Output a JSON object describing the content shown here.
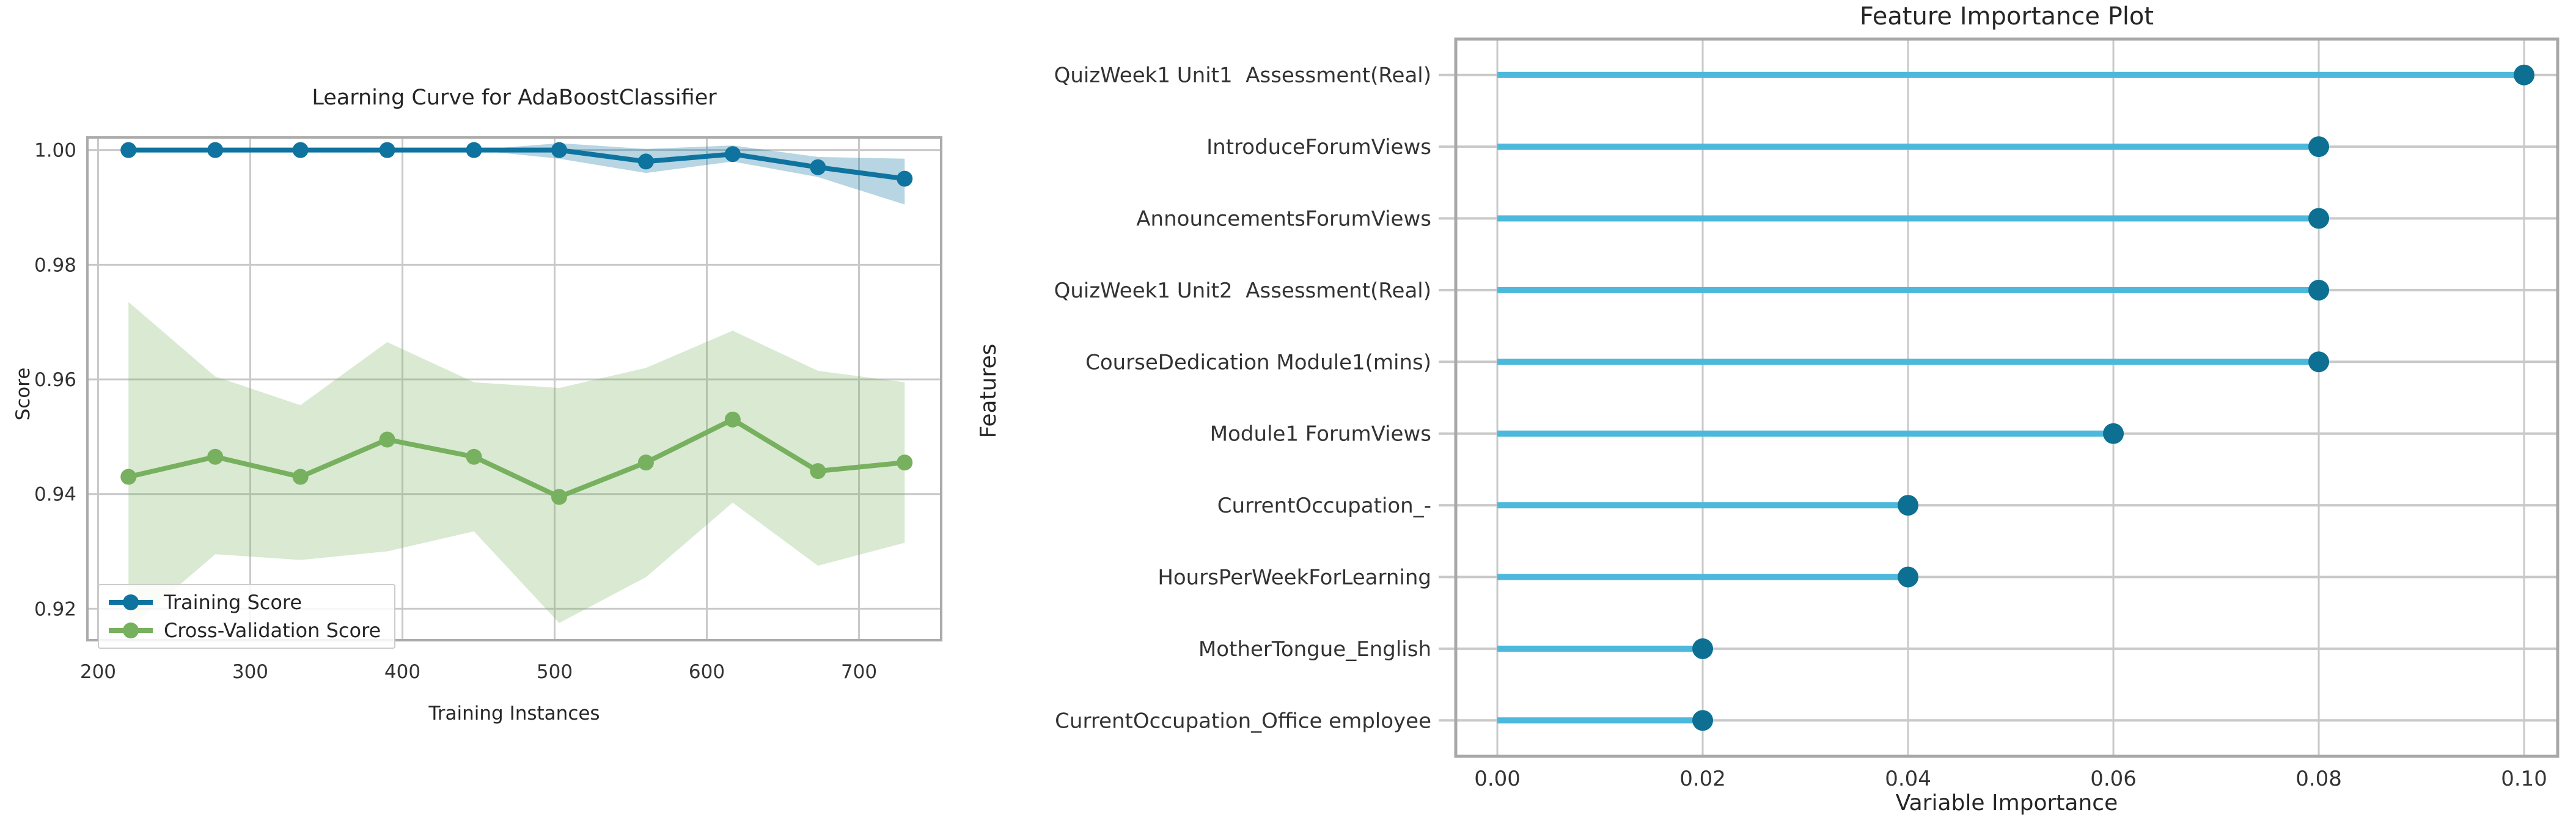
{
  "page": {
    "background": "#ffffff"
  },
  "chart_data": [
    {
      "id": "learning_curve",
      "type": "line",
      "title": "Learning Curve for AdaBoostClassifier",
      "xlabel": "Training Instances",
      "ylabel": "Score",
      "legend": [
        "Training Score",
        "Cross-Validation Score"
      ],
      "legend_position": "lower left",
      "grid": true,
      "grid_color": "#c9c9c9",
      "xlim": [
        193,
        754
      ],
      "ylim": [
        0.9145,
        1.0022
      ],
      "xticks": [
        200,
        300,
        400,
        500,
        600,
        700
      ],
      "yticks": [
        1.0,
        0.98,
        0.96,
        0.94,
        0.92
      ],
      "x": [
        220,
        277,
        333,
        390,
        447,
        503,
        560,
        617,
        673,
        730
      ],
      "series": [
        {
          "key": "training-score",
          "name": "Training Score",
          "color": "#0f739f",
          "band_color": "rgba(15,115,159,0.30)",
          "values": [
            1.0,
            1.0,
            1.0,
            1.0,
            1.0,
            1.0,
            0.998,
            0.9993,
            0.997,
            0.995
          ],
          "lower": [
            1.0,
            1.0,
            1.0,
            1.0,
            1.0,
            0.9985,
            0.996,
            0.998,
            0.9953,
            0.9905
          ],
          "upper": [
            1.0,
            1.0,
            1.0,
            1.0,
            1.0,
            1.0012,
            1.0002,
            1.0008,
            0.9988,
            0.9985
          ]
        },
        {
          "key": "cross-validation-score",
          "name": "Cross-Validation Score",
          "color": "#77b05e",
          "band_color": "rgba(119,176,94,0.28)",
          "values": [
            0.943,
            0.9465,
            0.943,
            0.9495,
            0.9465,
            0.9395,
            0.9455,
            0.953,
            0.944,
            0.9455
          ],
          "lower": [
            0.9165,
            0.9295,
            0.9285,
            0.93,
            0.9335,
            0.9175,
            0.9255,
            0.9385,
            0.9275,
            0.9315
          ],
          "upper": [
            0.9735,
            0.9605,
            0.9555,
            0.9665,
            0.9595,
            0.9585,
            0.962,
            0.9685,
            0.9615,
            0.9595
          ]
        }
      ]
    },
    {
      "id": "feature_importance",
      "type": "lollipop",
      "title": "Feature Importance Plot",
      "xlabel": "Variable Importance",
      "ylabel": "Features",
      "grid": true,
      "grid_color": "#c9c9c9",
      "xlim": [
        -0.00405,
        0.10327
      ],
      "xticks": [
        0.0,
        0.02,
        0.04,
        0.06,
        0.08,
        0.1
      ],
      "stem_color": "#4cb8dc",
      "dot_color": "#0d7092",
      "categories": [
        "QuizWeek1 Unit1  Assessment(Real)",
        "IntroduceForumViews",
        "AnnouncementsForumViews",
        "QuizWeek1 Unit2  Assessment(Real)",
        "CourseDedication Module1(mins)",
        "Module1 ForumViews",
        "CurrentOccupation_-",
        "HoursPerWeekForLearning",
        "MotherTongue_English",
        "CurrentOccupation_Office employee"
      ],
      "values": [
        0.1,
        0.08,
        0.08,
        0.08,
        0.08,
        0.06,
        0.04,
        0.04,
        0.02,
        0.02
      ]
    }
  ]
}
